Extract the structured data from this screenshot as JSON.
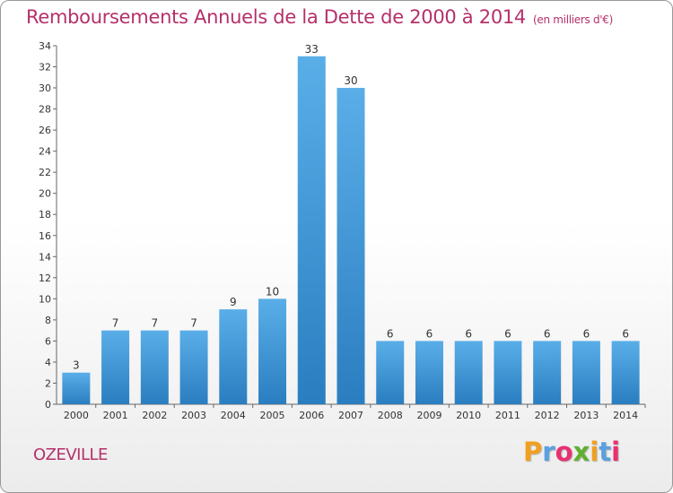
{
  "header": {
    "title": "Remboursements Annuels de la Dette de 2000 à 2014",
    "unit": "(en milliers d'€)"
  },
  "footer": {
    "city": "OZEVILLE",
    "logo": "Proxiti",
    "logo_colors": [
      "#f0a020",
      "#5aa0e0",
      "#e83070",
      "#60b030",
      "#f0a020",
      "#5aa0e0",
      "#e83070"
    ]
  },
  "colors": {
    "title": "#b5306a",
    "bar_top": "#5aaee8",
    "bar_bottom": "#2a7ec0",
    "axis": "#666666"
  },
  "chart_data": {
    "type": "bar",
    "title": "Remboursements Annuels de la Dette de 2000 à 2014",
    "categories": [
      "2000",
      "2001",
      "2002",
      "2003",
      "2004",
      "2005",
      "2006",
      "2007",
      "2008",
      "2009",
      "2010",
      "2011",
      "2012",
      "2013",
      "2014"
    ],
    "values": [
      3,
      7,
      7,
      7,
      9,
      10,
      33,
      30,
      6,
      6,
      6,
      6,
      6,
      6,
      6
    ],
    "ylim": [
      0,
      34
    ],
    "yticks": [
      0,
      2,
      4,
      6,
      8,
      10,
      12,
      14,
      16,
      18,
      20,
      22,
      24,
      26,
      28,
      30,
      32,
      34
    ],
    "grid": false,
    "data_labels": true
  }
}
